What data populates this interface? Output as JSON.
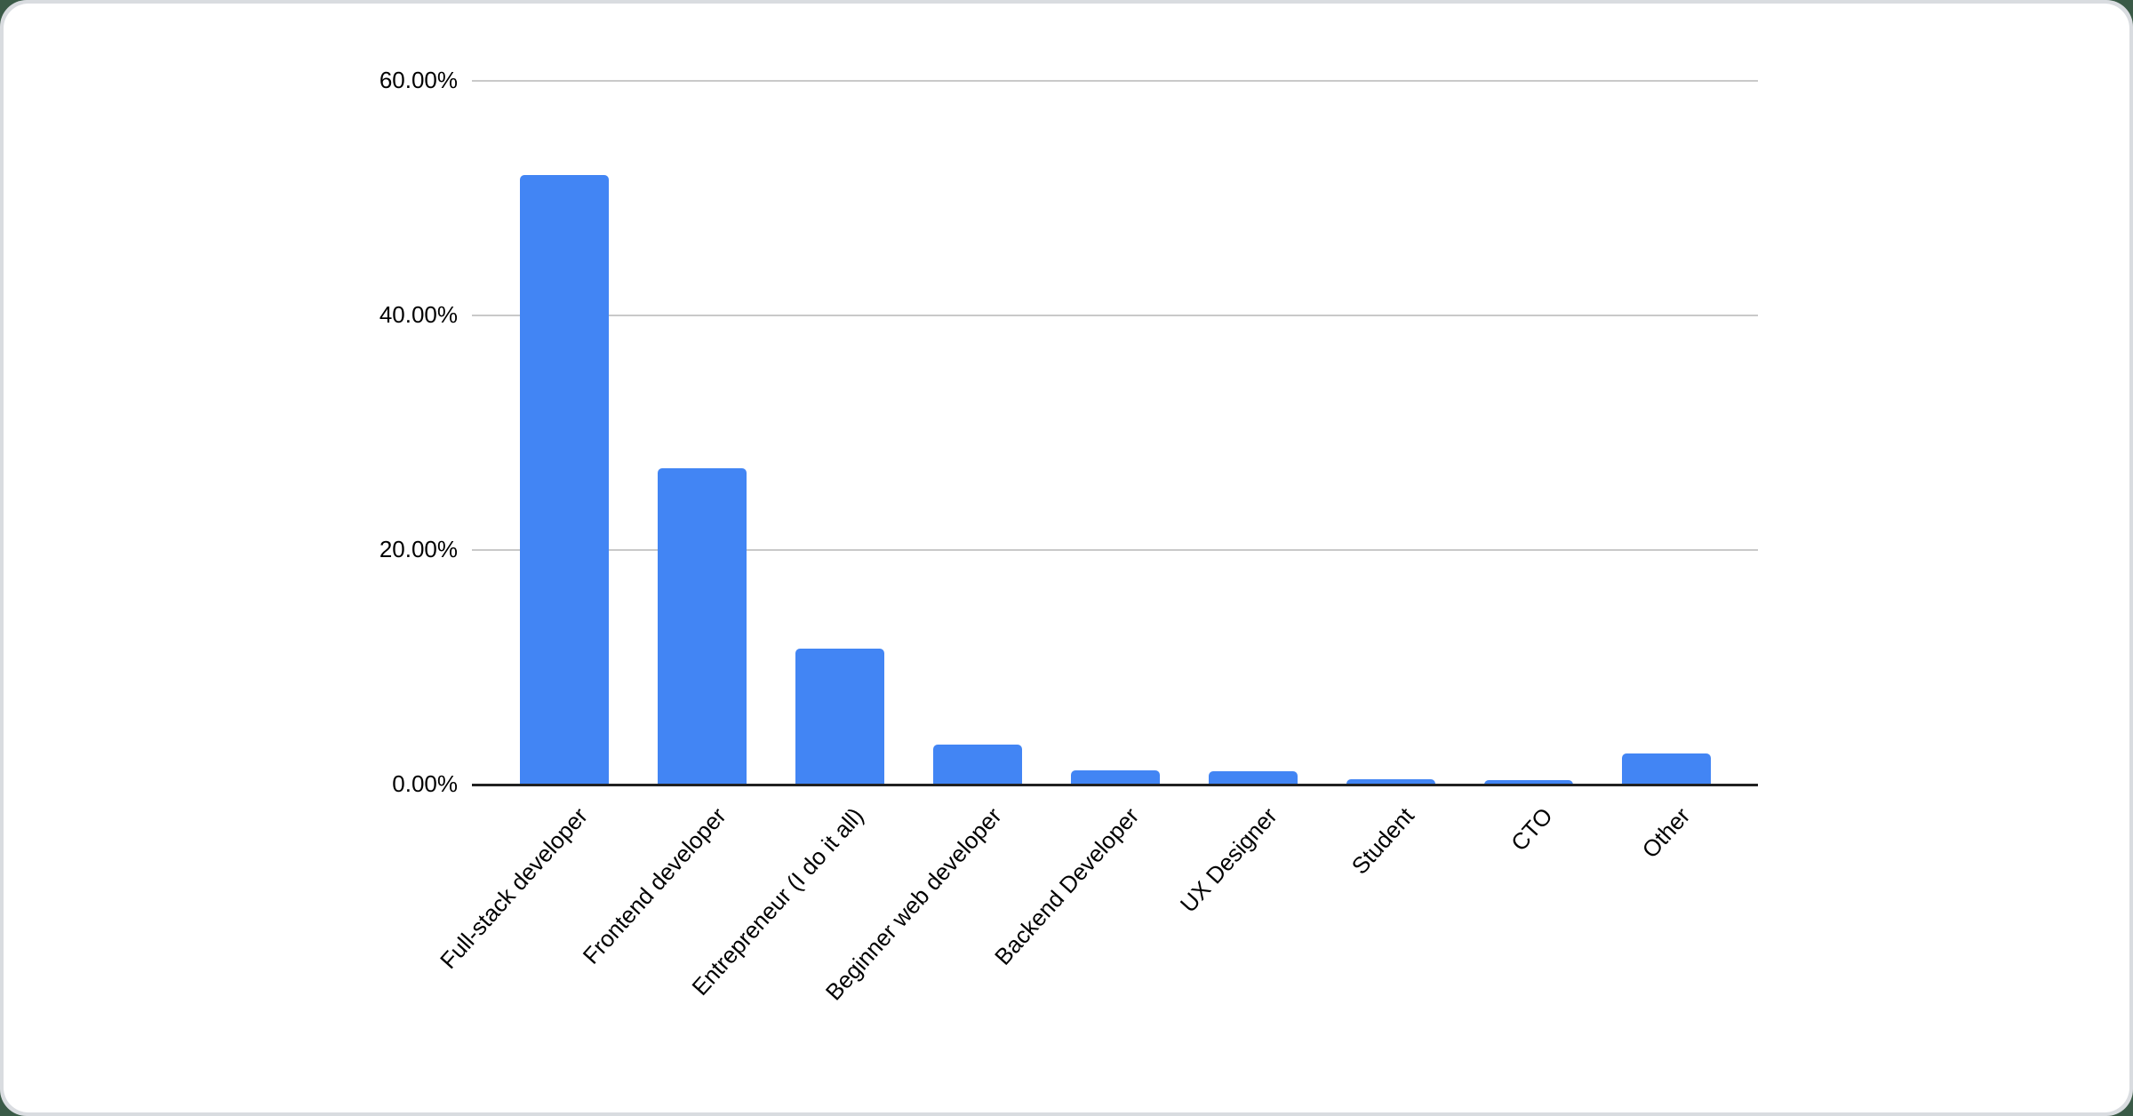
{
  "chart_data": {
    "type": "bar",
    "title": "",
    "xlabel": "",
    "ylabel": "",
    "legend": "none",
    "grid": "horizontal",
    "categories": [
      "Full-stack developer",
      "Frontend developer",
      "Entrepreneur (I do it all)",
      "Beginner web developer",
      "Backend Developer",
      "UX Designer",
      "Student",
      "CTO",
      "Other"
    ],
    "values": [
      52.0,
      27.0,
      11.6,
      3.4,
      1.2,
      1.1,
      0.45,
      0.38,
      2.65
    ],
    "y_axis": {
      "min": 0,
      "max": 60,
      "tick_values": [
        0,
        20,
        40,
        60
      ],
      "tick_labels": [
        "0.00%",
        "20.00%",
        "40.00%",
        "60.00%"
      ]
    },
    "colors": {
      "bar": "#4285f4",
      "gridline": "#c9c9c9",
      "axis_line": "#212121",
      "label_text": "#000000",
      "card_background": "#ffffff",
      "frame_background": "#d9dce0",
      "page_background": "#3a5a47"
    }
  }
}
